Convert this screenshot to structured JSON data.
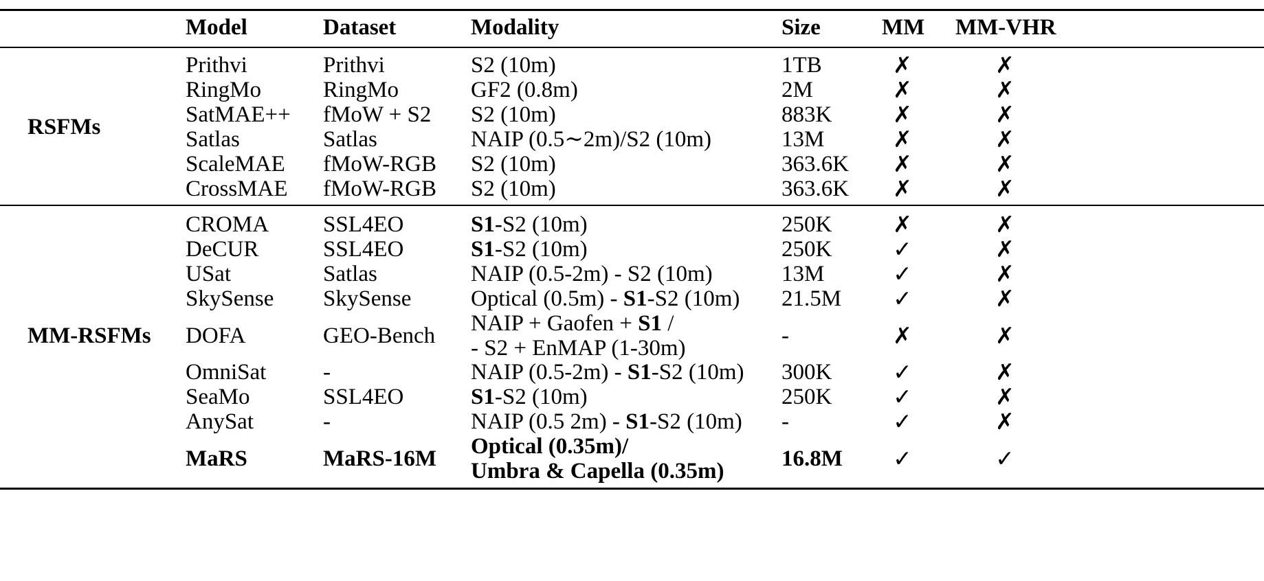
{
  "headers": {
    "model": "Model",
    "dataset": "Dataset",
    "modality": "Modality",
    "size": "Size",
    "mm": "MM",
    "mm_vhr": "MM-VHR"
  },
  "groups": {
    "rsfms": "RSFMs",
    "mm_rsfms": "MM-RSFMs"
  },
  "marks": {
    "yes": "✓",
    "no": "✗"
  },
  "rsfm_rows": [
    {
      "model": "Prithvi",
      "dataset": "Prithvi",
      "modality": [
        {
          "t": "S2 (10m)"
        }
      ],
      "size": "1TB",
      "mm": "no",
      "vhr": "no"
    },
    {
      "model": "RingMo",
      "dataset": "RingMo",
      "modality": [
        {
          "t": "GF2 (0.8m)"
        }
      ],
      "size": "2M",
      "mm": "no",
      "vhr": "no"
    },
    {
      "model": "SatMAE++",
      "dataset": "fMoW + S2",
      "modality": [
        {
          "t": "S2 (10m)"
        }
      ],
      "size": "883K",
      "mm": "no",
      "vhr": "no"
    },
    {
      "model": "Satlas",
      "dataset": "Satlas",
      "modality": [
        {
          "t": "NAIP (0.5∼2m)/S2 (10m)"
        }
      ],
      "size": "13M",
      "mm": "no",
      "vhr": "no"
    },
    {
      "model": "ScaleMAE",
      "dataset": "fMoW-RGB",
      "modality": [
        {
          "t": "S2 (10m)"
        }
      ],
      "size": "363.6K",
      "mm": "no",
      "vhr": "no"
    },
    {
      "model": "CrossMAE",
      "dataset": "fMoW-RGB",
      "modality": [
        {
          "t": "S2 (10m)"
        }
      ],
      "size": "363.6K",
      "mm": "no",
      "vhr": "no"
    }
  ],
  "mm_rows": [
    {
      "model": "CROMA",
      "dataset": "SSL4EO",
      "modality": [
        {
          "t": "S1",
          "b": true
        },
        {
          "t": "-S2 (10m)"
        }
      ],
      "size": "250K",
      "mm": "no",
      "vhr": "no"
    },
    {
      "model": "DeCUR",
      "dataset": "SSL4EO",
      "modality": [
        {
          "t": "S1",
          "b": true
        },
        {
          "t": "-S2 (10m)"
        }
      ],
      "size": "250K",
      "mm": "yes",
      "vhr": "no"
    },
    {
      "model": "USat",
      "dataset": "Satlas",
      "modality": [
        {
          "t": "NAIP (0.5-2m) - S2 (10m)"
        }
      ],
      "size": "13M",
      "mm": "yes",
      "vhr": "no"
    },
    {
      "model": "SkySense",
      "dataset": "SkySense",
      "modality": [
        {
          "t": "Optical (0.5m) - "
        },
        {
          "t": "S1",
          "b": true
        },
        {
          "t": "-S2 (10m)"
        }
      ],
      "size": "21.5M",
      "mm": "yes",
      "vhr": "no"
    },
    {
      "model": "DOFA",
      "dataset": "GEO-Bench",
      "modality": [
        {
          "t": "NAIP + Gaofen + "
        },
        {
          "t": "S1",
          "b": true
        },
        {
          "t": " /"
        }
      ],
      "modality2": [
        {
          "t": "- S2 + EnMAP (1-30m)"
        }
      ],
      "size": "-",
      "mm": "no",
      "vhr": "no"
    },
    {
      "model": "OmniSat",
      "dataset": "-",
      "modality": [
        {
          "t": "NAIP (0.5-2m) - "
        },
        {
          "t": "S1",
          "b": true
        },
        {
          "t": "-S2 (10m)"
        }
      ],
      "size": "300K",
      "mm": "yes",
      "vhr": "no"
    },
    {
      "model": "SeaMo",
      "dataset": "SSL4EO",
      "modality": [
        {
          "t": "S1",
          "b": true
        },
        {
          "t": "-S2 (10m)"
        }
      ],
      "size": "250K",
      "mm": "yes",
      "vhr": "no"
    },
    {
      "model": "AnySat",
      "dataset": "-",
      "modality": [
        {
          "t": "NAIP (0.5 2m) - "
        },
        {
          "t": "S1",
          "b": true
        },
        {
          "t": "-S2 (10m)"
        }
      ],
      "size": "-",
      "mm": "yes",
      "vhr": "no"
    },
    {
      "model": "MaRS",
      "dataset": "MaRS-16M",
      "modality": [
        {
          "t": "Optical (0.35m)/",
          "b": true
        }
      ],
      "modality2": [
        {
          "t": "Umbra & Capella (0.35m)",
          "b": true
        }
      ],
      "size": "16.8M",
      "mm": "yes",
      "vhr": "yes",
      "bold": true
    }
  ]
}
